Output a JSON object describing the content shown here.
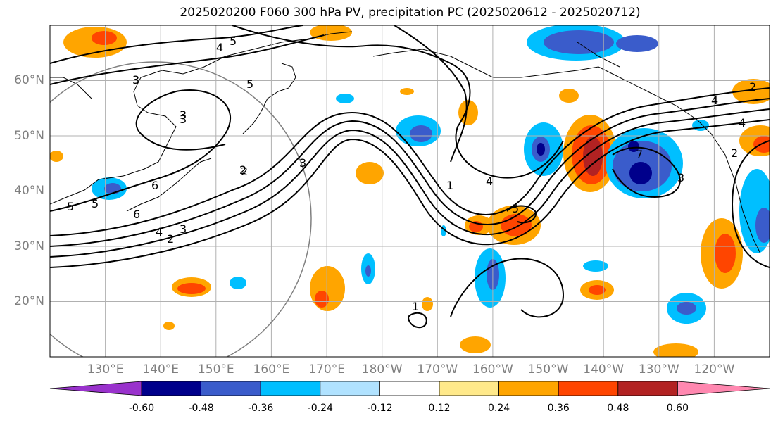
{
  "title": "2025020200 F060 300 hPa PV, precipitation PC (2025020612 - 2025020712)",
  "map": {
    "projection": "cylindrical",
    "lon_range": [
      120,
      250
    ],
    "lat_range": [
      10,
      70
    ],
    "latitude_labels": [
      "20°N",
      "30°N",
      "40°N",
      "50°N",
      "60°N"
    ],
    "longitude_labels": [
      "130°E",
      "140°E",
      "150°E",
      "160°E",
      "170°E",
      "180°W",
      "170°W",
      "160°W",
      "150°W",
      "140°W",
      "130°W",
      "120°W"
    ],
    "gridlines": true,
    "circle_outline_color": "#808080",
    "pv_contour_color": "#000000",
    "pv_contour_labels": [
      "6",
      "5",
      "4",
      "5",
      "3",
      "3",
      "3",
      "2",
      "6",
      "5",
      "4",
      "3",
      "2",
      "5",
      "2",
      "3",
      "4",
      "1",
      "4",
      "5",
      "1",
      "7",
      "3",
      "2",
      "4",
      "2"
    ]
  },
  "colorbar": {
    "tick_labels": [
      "-0.60",
      "-0.48",
      "-0.36",
      "-0.24",
      "-0.12",
      "0.12",
      "0.24",
      "0.36",
      "0.48",
      "0.60"
    ],
    "colors": [
      "#9932cc",
      "#00008b",
      "#3a5ccb",
      "#00bfff",
      "#b0e2ff",
      "#ffffff",
      "#ffe98a",
      "#ffa500",
      "#ff4500",
      "#b22222",
      "#ff88b0"
    ]
  }
}
